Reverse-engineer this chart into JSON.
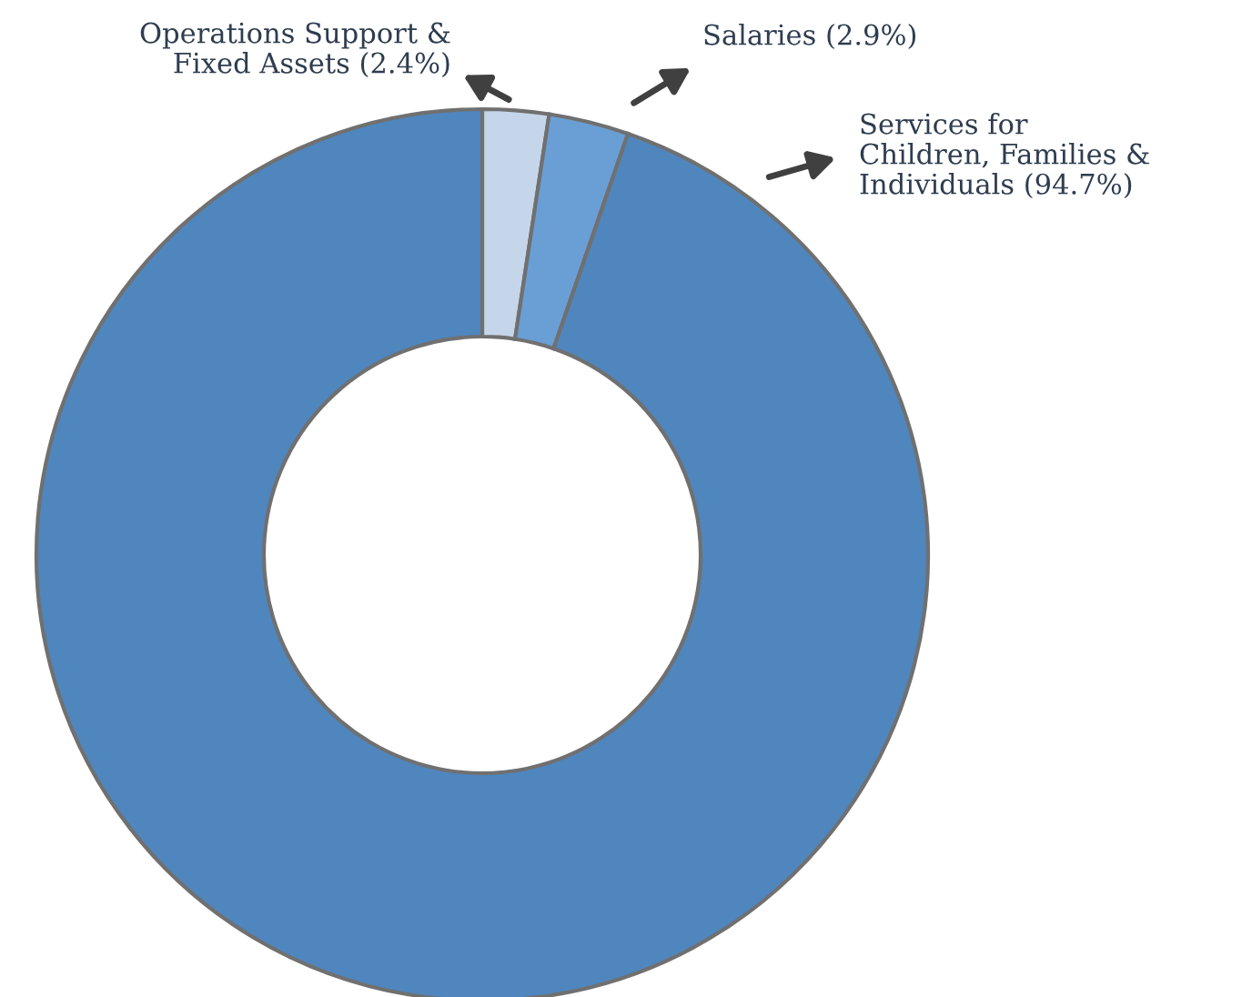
{
  "chart_data": {
    "type": "donut",
    "categories": [
      "Operations Support &\nFixed Assets (2.4%)",
      "Salaries (2.9%)",
      "Services for\nChildren, Families &\nIndividuals (94.7%)"
    ],
    "values": [
      2.4,
      2.9,
      94.7
    ],
    "colors": [
      "#c5d6ea",
      "#6a9fd6",
      "#4f86be"
    ],
    "legend": false
  }
}
